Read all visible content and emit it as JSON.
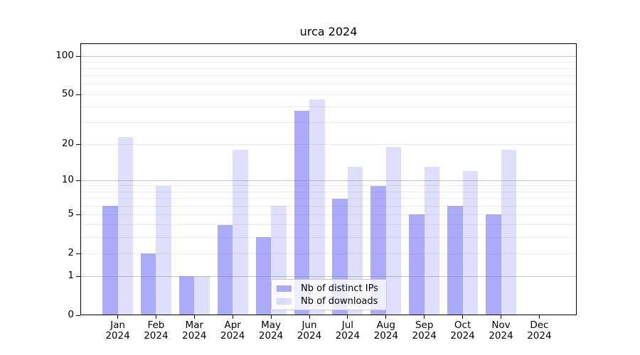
{
  "title": "urca 2024",
  "chart_data": {
    "type": "bar",
    "title": "urca 2024",
    "categories": [
      "Jan",
      "Feb",
      "Mar",
      "Apr",
      "May",
      "Jun",
      "Jul",
      "Aug",
      "Sep",
      "Oct",
      "Nov",
      "Dec"
    ],
    "x_year_suffix": "2024",
    "series": [
      {
        "name": "Nb of distinct IPs",
        "color": "#6e6ef5",
        "alpha": 0.58,
        "composite_color": "#aaaaf2",
        "values": [
          6,
          2,
          1,
          4,
          3,
          37,
          7,
          9,
          5,
          6,
          5,
          0
        ]
      },
      {
        "name": "Nb of downloads",
        "color": "#6e6ef5",
        "alpha": 0.22,
        "composite_color": "#dcdcf8",
        "values": [
          23,
          9,
          1,
          18,
          6,
          46,
          13,
          19,
          13,
          12,
          18,
          0
        ]
      }
    ],
    "y_scale": "log1p",
    "ylim": [
      0,
      126
    ],
    "yticks": [
      0,
      1,
      2,
      5,
      10,
      20,
      50,
      100
    ],
    "major_gridlines": [
      1,
      10,
      100
    ],
    "minor_gridlines": [
      2,
      3,
      4,
      5,
      6,
      7,
      8,
      9,
      20,
      30,
      40,
      50,
      60,
      70,
      80,
      90
    ],
    "grid": true,
    "legend_position": "lower center",
    "xlabel": "",
    "ylabel": ""
  },
  "colors": {
    "background": "#ffffff",
    "spine": "#000000",
    "major_grid": "#c6c6c6",
    "minor_grid": "#ececec",
    "text": "#000000",
    "legend_border": "#c9c9c9"
  }
}
